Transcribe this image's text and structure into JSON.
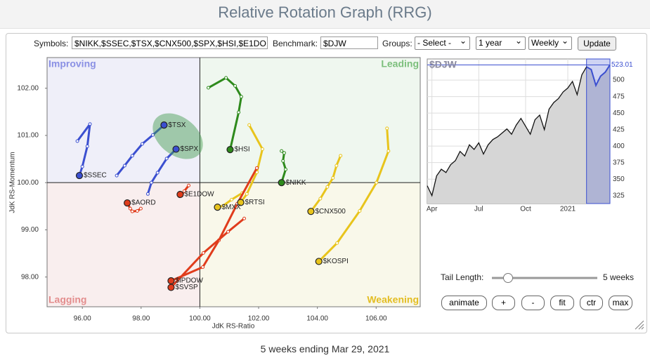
{
  "header": {
    "title": "Relative Rotation Graph (RRG)"
  },
  "controls": {
    "symbols_label": "Symbols:",
    "symbols": "$NIKK,$SSEC,$TSX,$CNX500,$SPX,$HSI,$E1DO",
    "benchmark_label": "Benchmark:",
    "benchmark": "$DJW",
    "groups_label": "Groups:",
    "groups": "- Select -",
    "period": "1 year",
    "frequency": "Weekly",
    "update": "Update"
  },
  "chart_data": [
    {
      "type": "scatter",
      "x_label": "JdK RS-Ratio",
      "y_label": "JdK RS-Momentum",
      "xlim": [
        94.8,
        107.5
      ],
      "ylim": [
        97.37,
        102.65
      ],
      "center": [
        100,
        100
      ],
      "xticks": [
        {
          "value": 96,
          "label": "96.00"
        },
        {
          "value": 98,
          "label": "98.00"
        },
        {
          "value": 100,
          "label": "100.00"
        },
        {
          "value": 102,
          "label": "102.00"
        },
        {
          "value": 104,
          "label": "104.00"
        },
        {
          "value": 106,
          "label": "106.00"
        }
      ],
      "yticks": [
        {
          "value": 98,
          "label": "98.00"
        },
        {
          "value": 99,
          "label": "99.00"
        },
        {
          "value": 100,
          "label": "100.00"
        },
        {
          "value": 101,
          "label": "101.00"
        },
        {
          "value": 102,
          "label": "102.00"
        }
      ],
      "quadrants": [
        {
          "label": "Improving",
          "corner": "top-left",
          "color": "#8a90e4",
          "fill": "#efeff9"
        },
        {
          "label": "Leading",
          "corner": "top-right",
          "color": "#7cbf7c",
          "fill": "#eff7ef"
        },
        {
          "label": "Lagging",
          "corner": "bottom-left",
          "color": "#e38d8d",
          "fill": "#f9eeee"
        },
        {
          "label": "Weakening",
          "corner": "bottom-right",
          "color": "#e3bd22",
          "fill": "#f9f8ea"
        }
      ],
      "series": [
        {
          "name": "$SSEC",
          "color": "#3b4fd0",
          "x": [
            95.83,
            96.26,
            96.17,
            96.0,
            95.9
          ],
          "values": [
            100.88,
            101.24,
            100.77,
            100.34,
            100.15
          ]
        },
        {
          "name": "$TSX",
          "color": "#3b4fd0",
          "x": [
            97.17,
            97.44,
            97.7,
            98.04,
            98.4,
            98.78
          ],
          "values": [
            100.15,
            100.36,
            100.57,
            100.82,
            101.01,
            101.22
          ]
        },
        {
          "name": "$SPX",
          "color": "#3b4fd0",
          "x": [
            98.23,
            98.35,
            98.56,
            98.87,
            99.19
          ],
          "values": [
            99.76,
            100.0,
            100.21,
            100.51,
            100.71
          ]
        },
        {
          "name": "$HSI",
          "color": "#2e8a1c",
          "x": [
            100.29,
            100.89,
            101.2,
            101.41,
            101.32,
            101.03
          ],
          "values": [
            102.01,
            102.22,
            102.05,
            101.82,
            101.49,
            100.7
          ]
        },
        {
          "name": "$NIKK",
          "color": "#2e8a1c",
          "x": [
            102.78,
            102.87,
            102.83,
            102.92,
            102.78
          ],
          "values": [
            100.67,
            100.63,
            100.46,
            100.28,
            100.0
          ]
        },
        {
          "name": "$CNX500",
          "color": "#e8c41c",
          "x": [
            104.79,
            104.65,
            104.53,
            104.34,
            104.1,
            103.78
          ],
          "values": [
            100.57,
            100.36,
            100.1,
            99.91,
            99.66,
            99.39
          ]
        },
        {
          "name": "$KOSPI",
          "color": "#e8c41c",
          "x": [
            106.37,
            106.42,
            106.01,
            105.44,
            104.67,
            104.05
          ],
          "values": [
            101.15,
            100.67,
            100.0,
            99.4,
            98.72,
            98.33
          ]
        },
        {
          "name": "$RTSI",
          "color": "#e8c41c",
          "x": [
            101.68,
            102.13,
            101.94,
            101.6,
            101.39
          ],
          "values": [
            101.22,
            100.71,
            100.22,
            99.76,
            99.58
          ]
        },
        {
          "name": "$MXX",
          "color": "#e8c41c",
          "x": [
            101.44,
            101.08,
            100.79,
            100.6
          ],
          "values": [
            99.78,
            99.64,
            99.51,
            99.48
          ]
        },
        {
          "name": "$E1DOW",
          "color": "#e03c1c",
          "x": [
            99.62,
            99.47,
            99.38,
            99.33
          ],
          "values": [
            99.94,
            99.82,
            99.73,
            99.75
          ]
        },
        {
          "name": "$AORD",
          "color": "#e03c1c",
          "x": [
            97.99,
            97.87,
            97.7,
            97.63,
            97.53
          ],
          "values": [
            99.45,
            99.4,
            99.39,
            99.45,
            99.57
          ]
        },
        {
          "name": "$IPDOW",
          "color": "#e03c1c",
          "x": [
            101.94,
            101.27,
            100.65,
            100.1,
            99.02
          ],
          "values": [
            100.31,
            99.55,
            98.78,
            98.21,
            97.92
          ]
        },
        {
          "name": "$SVSP",
          "color": "#e03c1c",
          "x": [
            101.51,
            100.96,
            100.12,
            99.02
          ],
          "values": [
            99.24,
            98.96,
            98.51,
            97.78
          ]
        }
      ]
    },
    {
      "type": "line",
      "title": "$DJW",
      "color": "#111111",
      "last_color": "#3b4fd0",
      "categories": [
        null,
        "Apr",
        null,
        null,
        null,
        null,
        null,
        null,
        null,
        null,
        null,
        "Jul",
        null,
        null,
        null,
        null,
        null,
        null,
        null,
        null,
        null,
        "Oct",
        null,
        null,
        null,
        null,
        null,
        null,
        null,
        null,
        "2021",
        null,
        null,
        null,
        null,
        null,
        null,
        null,
        null,
        null
      ],
      "values": [
        340,
        325,
        355,
        365,
        360,
        372,
        378,
        392,
        385,
        402,
        395,
        405,
        388,
        402,
        410,
        414,
        420,
        426,
        418,
        432,
        442,
        430,
        418,
        440,
        447,
        425,
        456,
        466,
        472,
        482,
        488,
        498,
        478,
        508,
        520,
        516,
        492,
        506,
        512,
        523
      ],
      "ylim": [
        313,
        532
      ],
      "yticks": [
        325,
        350,
        375,
        400,
        425,
        450,
        475,
        500
      ],
      "last_value": 523.01
    }
  ],
  "tail": {
    "label": "Tail Length:",
    "value": "5 weeks"
  },
  "buttons": [
    "animate",
    "+",
    "-",
    "fit",
    "ctr",
    "max"
  ],
  "footer": "5 weeks ending Mar 29, 2021"
}
